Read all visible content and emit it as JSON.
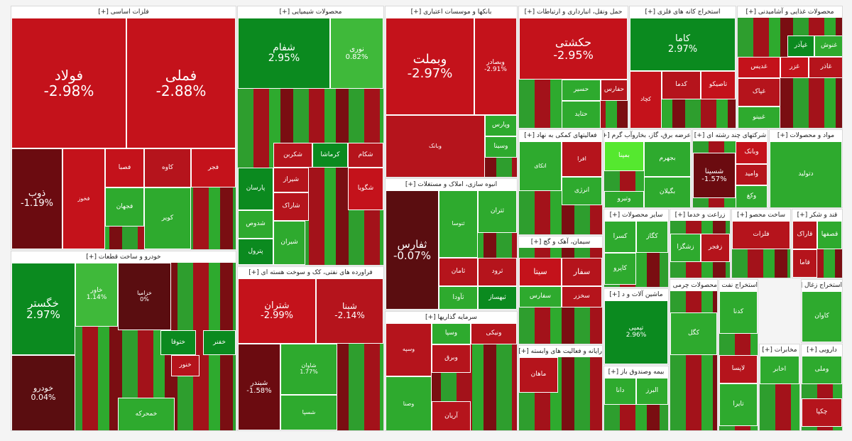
{
  "palette": {
    "strong_up": "#0b8a1f",
    "up": "#2eaa2e",
    "mild_up": "#3fb93a",
    "flat": "#5a0d10",
    "down": "#b5141c",
    "strong_down": "#c4121b",
    "deep_down": "#6b0b10",
    "bright_up": "#55e82f"
  },
  "chart_data": {
    "type": "treemap",
    "title": "",
    "sectors": [
      {
        "name": "فلزات اساسی [+]",
        "tiles": [
          {
            "symbol": "فولاد",
            "change": "-2.98%",
            "value": -2.98
          },
          {
            "symbol": "فملی",
            "change": "-2.88%",
            "value": -2.88
          },
          {
            "symbol": "ذوب",
            "change": "-1.19%",
            "value": -1.19
          },
          {
            "symbol": "فخوز",
            "change": "",
            "value": -2.5
          },
          {
            "symbol": "فصبا",
            "change": "",
            "value": -2.6
          },
          {
            "symbol": "کاوه",
            "change": "",
            "value": -2.4
          },
          {
            "symbol": "فجر",
            "change": "",
            "value": -2.7
          },
          {
            "symbol": "فجهان",
            "change": "",
            "value": 2.0
          },
          {
            "symbol": "کویر",
            "change": "",
            "value": 1.5
          }
        ]
      },
      {
        "name": "محصولات شیمیایی [+]",
        "tiles": [
          {
            "symbol": "شفام",
            "change": "2.95%",
            "value": 2.95
          },
          {
            "symbol": "نوری",
            "change": "0.82%",
            "value": 0.82
          },
          {
            "symbol": "شکربن",
            "change": "",
            "value": -2.0
          },
          {
            "symbol": "کرماشا",
            "change": "",
            "value": 2.5
          },
          {
            "symbol": "شکام",
            "change": "",
            "value": -2.2
          },
          {
            "symbol": "پارسان",
            "change": "",
            "value": 2.6
          },
          {
            "symbol": "شیراز",
            "change": "",
            "value": -2.3
          },
          {
            "symbol": "شدوص",
            "change": "",
            "value": 2.1
          },
          {
            "symbol": "شاراک",
            "change": "",
            "value": -1.8
          },
          {
            "symbol": "شیران",
            "change": "",
            "value": 2.4
          },
          {
            "symbol": "پترول",
            "change": "",
            "value": 2.7
          },
          {
            "symbol": "شگویا",
            "change": "",
            "value": -2.6
          }
        ]
      },
      {
        "name": "بانکها و موسسات اعتباری [+]",
        "tiles": [
          {
            "symbol": "وبملت",
            "change": "-2.97%",
            "value": -2.97
          },
          {
            "symbol": "وبصادر",
            "change": "-2.91%",
            "value": -2.91
          },
          {
            "symbol": "وپارس",
            "change": "",
            "value": 2.0
          },
          {
            "symbol": "وسینا",
            "change": "",
            "value": 2.2
          },
          {
            "symbol": "وبانک",
            "change": "",
            "value": -2.1
          }
        ]
      },
      {
        "name": "حمل ونقل، انبارداری و ارتباطات [+]",
        "tiles": [
          {
            "symbol": "حکشتی",
            "change": "-2.95%",
            "value": -2.95
          },
          {
            "symbol": "حسیر",
            "change": "",
            "value": 2.1
          },
          {
            "symbol": "حفارس",
            "change": "",
            "value": -2.4
          },
          {
            "symbol": "حتاید",
            "change": "",
            "value": 2.3
          }
        ]
      },
      {
        "name": "استخراج کانه های فلزی [+]",
        "tiles": [
          {
            "symbol": "کاما",
            "change": "2.97%",
            "value": 2.97
          },
          {
            "symbol": "کچاد",
            "change": "",
            "value": -2.5
          },
          {
            "symbol": "کدما",
            "change": "",
            "value": -2.1
          },
          {
            "symbol": "تاصیکو",
            "change": "",
            "value": -2.6
          }
        ]
      },
      {
        "name": "محصولات غذایی و آشامیدنی [+]",
        "tiles": [
          {
            "symbol": "غنوش",
            "change": "",
            "value": 2.4
          },
          {
            "symbol": "غپآذر",
            "change": "",
            "value": 2.6
          },
          {
            "symbol": "غاذر",
            "change": "",
            "value": -2.2
          },
          {
            "symbol": "غدیس",
            "change": "",
            "value": -2.7
          },
          {
            "symbol": "غزر",
            "change": "",
            "value": -2.5
          },
          {
            "symbol": "غپاک",
            "change": "",
            "value": -2.3
          },
          {
            "symbol": "غبینو",
            "change": "",
            "value": 2.1
          }
        ]
      },
      {
        "name": "خودرو و ساخت قطعات [+]",
        "tiles": [
          {
            "symbol": "خگستر",
            "change": "2.97%",
            "value": 2.97
          },
          {
            "symbol": "خودرو",
            "change": "0.04%",
            "value": 0.04
          },
          {
            "symbol": "خاور",
            "change": "1.14%",
            "value": 1.14
          },
          {
            "symbol": "خزامیا",
            "change": "0%",
            "value": 0.0
          },
          {
            "symbol": "ختوقا",
            "change": "",
            "value": 2.5
          },
          {
            "symbol": "خنور",
            "change": "",
            "value": -2.4
          },
          {
            "symbol": "خفنر",
            "change": "",
            "value": 2.6
          },
          {
            "symbol": "خمحرکه",
            "change": "",
            "value": 2.2
          }
        ]
      },
      {
        "name": "فراورده های نفتی، کک و سوخت هسته ای [+]",
        "tiles": [
          {
            "symbol": "شتران",
            "change": "-2.99%",
            "value": -2.99
          },
          {
            "symbol": "شبنا",
            "change": "-2.14%",
            "value": -2.14
          },
          {
            "symbol": "شبندر",
            "change": "-1.58%",
            "value": -1.58
          },
          {
            "symbol": "شاوان",
            "change": "1.77%",
            "value": 1.77
          },
          {
            "symbol": "شسپا",
            "change": "",
            "value": 2.3
          }
        ]
      },
      {
        "name": "انبوه سازی، املاک و مستغلات [+]",
        "tiles": [
          {
            "symbol": "ثفارس",
            "change": "-0.07%",
            "value": -0.07
          },
          {
            "symbol": "ثنوسا",
            "change": "",
            "value": 2.2
          },
          {
            "symbol": "ثتران",
            "change": "",
            "value": 2.4
          },
          {
            "symbol": "ثرود",
            "change": "",
            "value": -2.4
          },
          {
            "symbol": "ثامان",
            "change": "",
            "value": -2.1
          },
          {
            "symbol": "ثآودا",
            "change": "",
            "value": 2.0
          },
          {
            "symbol": "ثبهساز",
            "change": "",
            "value": 2.5
          }
        ]
      },
      {
        "name": "سرمایه گذاریها [+]",
        "tiles": [
          {
            "symbol": "وسپه",
            "change": "",
            "value": -2.3
          },
          {
            "symbol": "وسپا",
            "change": "",
            "value": 2.1
          },
          {
            "symbol": "ونیکی",
            "change": "",
            "value": -2.4
          },
          {
            "symbol": "وصنا",
            "change": "",
            "value": 2.0
          },
          {
            "symbol": "وبرق",
            "change": "",
            "value": -2.2
          },
          {
            "symbol": "آریان",
            "change": "",
            "value": -2.0
          }
        ]
      },
      {
        "name": "سیمان، آهک و گچ [+]",
        "tiles": [
          {
            "symbol": "سیتا",
            "change": "",
            "value": -2.5
          },
          {
            "symbol": "سفار",
            "change": "",
            "value": -2.3
          },
          {
            "symbol": "سفارس",
            "change": "",
            "value": 2.2
          },
          {
            "symbol": "سخزر",
            "change": "",
            "value": -2.0
          }
        ]
      },
      {
        "name": "فعالیتهای کمکی به نهاد [+]",
        "tiles": [
          {
            "symbol": "اتکای",
            "change": "",
            "value": 2.3
          },
          {
            "symbol": "انرژی",
            "change": "",
            "value": 2.0
          },
          {
            "symbol": "افرا",
            "change": "",
            "value": -2.2
          }
        ]
      },
      {
        "name": "عرضه برق، گاز، بخاروآب گرم [+]",
        "tiles": [
          {
            "symbol": "بجهرم",
            "change": "",
            "value": 2.1
          },
          {
            "symbol": "بگیلان",
            "change": "",
            "value": 2.3
          },
          {
            "symbol": "ومین",
            "change": "",
            "value": 2.0
          },
          {
            "symbol": "وتیرو",
            "change": "",
            "value": 2.2
          },
          {
            "symbol": "بمپنا",
            "change": "",
            "value": 4.5
          }
        ]
      },
      {
        "name": "شرکتهای چند رشته ای [+]",
        "tiles": [
          {
            "symbol": "شسینا",
            "change": "-1.57%",
            "value": -1.57
          },
          {
            "symbol": "وبانک",
            "change": "",
            "value": -2.5
          },
          {
            "symbol": "وامید",
            "change": "",
            "value": -2.3
          },
          {
            "symbol": "وکغ",
            "change": "",
            "value": 2.1
          }
        ]
      },
      {
        "name": "مواد و محصولات [+]",
        "tiles": [
          {
            "symbol": "دتولید",
            "change": "",
            "value": 2.0
          }
        ]
      },
      {
        "name": "سایر محصولات [+]",
        "tiles": [
          {
            "symbol": "کسرا",
            "change": "",
            "value": 2.4
          },
          {
            "symbol": "کگاز",
            "change": "",
            "value": 2.1
          },
          {
            "symbol": "کاپرو",
            "change": "",
            "value": 2.3
          }
        ]
      },
      {
        "name": "زراعت و خدما [+]",
        "tiles": [
          {
            "symbol": "زشگزا",
            "change": "",
            "value": 2.2
          },
          {
            "symbol": "زفجر",
            "change": "",
            "value": -2.0
          }
        ]
      },
      {
        "name": "ساخت محصو [+]",
        "tiles": [
          {
            "symbol": "فلزات",
            "change": "",
            "value": -2.2
          }
        ]
      },
      {
        "name": "قند و شکر [+]",
        "tiles": [
          {
            "symbol": "قاراک",
            "change": "",
            "value": -2.4
          },
          {
            "symbol": "قصفها",
            "change": "",
            "value": 2.3
          },
          {
            "symbol": "قاما",
            "change": "",
            "value": -2.1
          }
        ]
      },
      {
        "name": "ماشین آلات و د [+]",
        "tiles": [
          {
            "symbol": "تپمپی",
            "change": "2.96%",
            "value": 2.96
          }
        ]
      },
      {
        "name": "بیمه وصندوق باز [+]",
        "tiles": [
          {
            "symbol": "دانا",
            "change": "",
            "value": 2.2
          },
          {
            "symbol": "البرز",
            "change": "",
            "value": 2.0
          }
        ]
      },
      {
        "name": "رایانه و فعالیت های وابسته [+]",
        "tiles": [
          {
            "symbol": "ماهان",
            "change": "",
            "value": -2.2
          }
        ]
      },
      {
        "name": "محصولات چرمی [+]",
        "tiles": [
          {
            "symbol": "کگل",
            "change": "",
            "value": 2.0
          }
        ]
      },
      {
        "name": "مخابرات [+]",
        "tiles": [
          {
            "symbol": "اخابر",
            "change": "",
            "value": 2.1
          }
        ]
      },
      {
        "name": "استخراج نفت [+]",
        "tiles": [
          {
            "symbol": "کدنا",
            "change": "",
            "value": 2.3
          },
          {
            "symbol": "لاپسا",
            "change": "",
            "value": -2.1
          },
          {
            "symbol": "تایرا",
            "change": "",
            "value": 2.0
          }
        ]
      },
      {
        "name": "استخراج زغال [+]",
        "tiles": [
          {
            "symbol": "کاوان",
            "change": "",
            "value": 2.2
          }
        ]
      },
      {
        "name": "دارویی [+]",
        "tiles": [
          {
            "symbol": "وملی",
            "change": "",
            "value": 2.0
          },
          {
            "symbol": "چکپا",
            "change": "",
            "value": -2.3
          }
        ]
      }
    ]
  }
}
